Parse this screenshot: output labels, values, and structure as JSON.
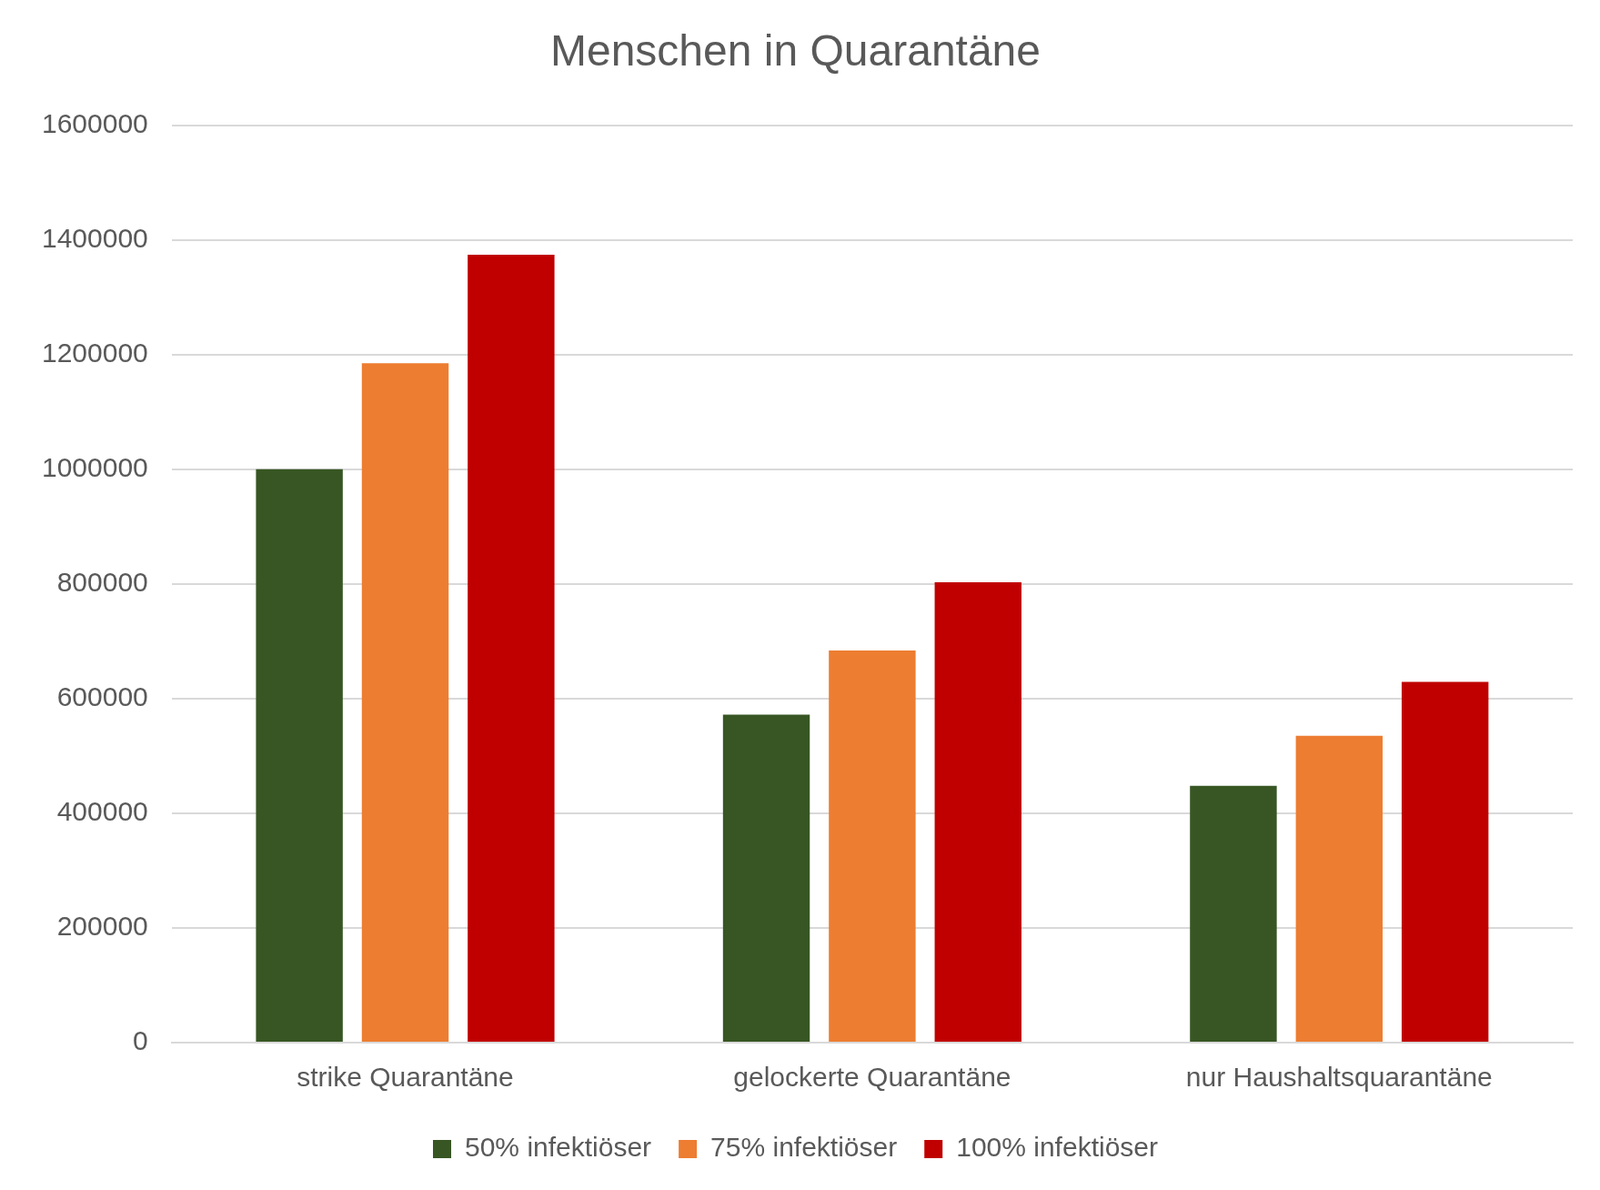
{
  "chart_data": {
    "type": "bar",
    "title": "Menschen in Quarantäne",
    "categories": [
      "strike Quarantäne",
      "gelockerte Quarantäne",
      "nur Haushaltsquarantäne"
    ],
    "series": [
      {
        "name": "50% infektiöser",
        "color": "#375623",
        "values": [
          1000000,
          572000,
          448000
        ]
      },
      {
        "name": "75% infektiöser",
        "color": "#ed7d31",
        "values": [
          1185000,
          684000,
          535000
        ]
      },
      {
        "name": "100% infektiöser",
        "color": "#c00000",
        "values": [
          1374000,
          803000,
          629000
        ]
      }
    ],
    "ylim": [
      0,
      1600000
    ],
    "yticks": [
      0,
      200000,
      400000,
      600000,
      800000,
      1000000,
      1200000,
      1400000,
      1600000
    ],
    "grid": true,
    "legend": "bottom"
  }
}
